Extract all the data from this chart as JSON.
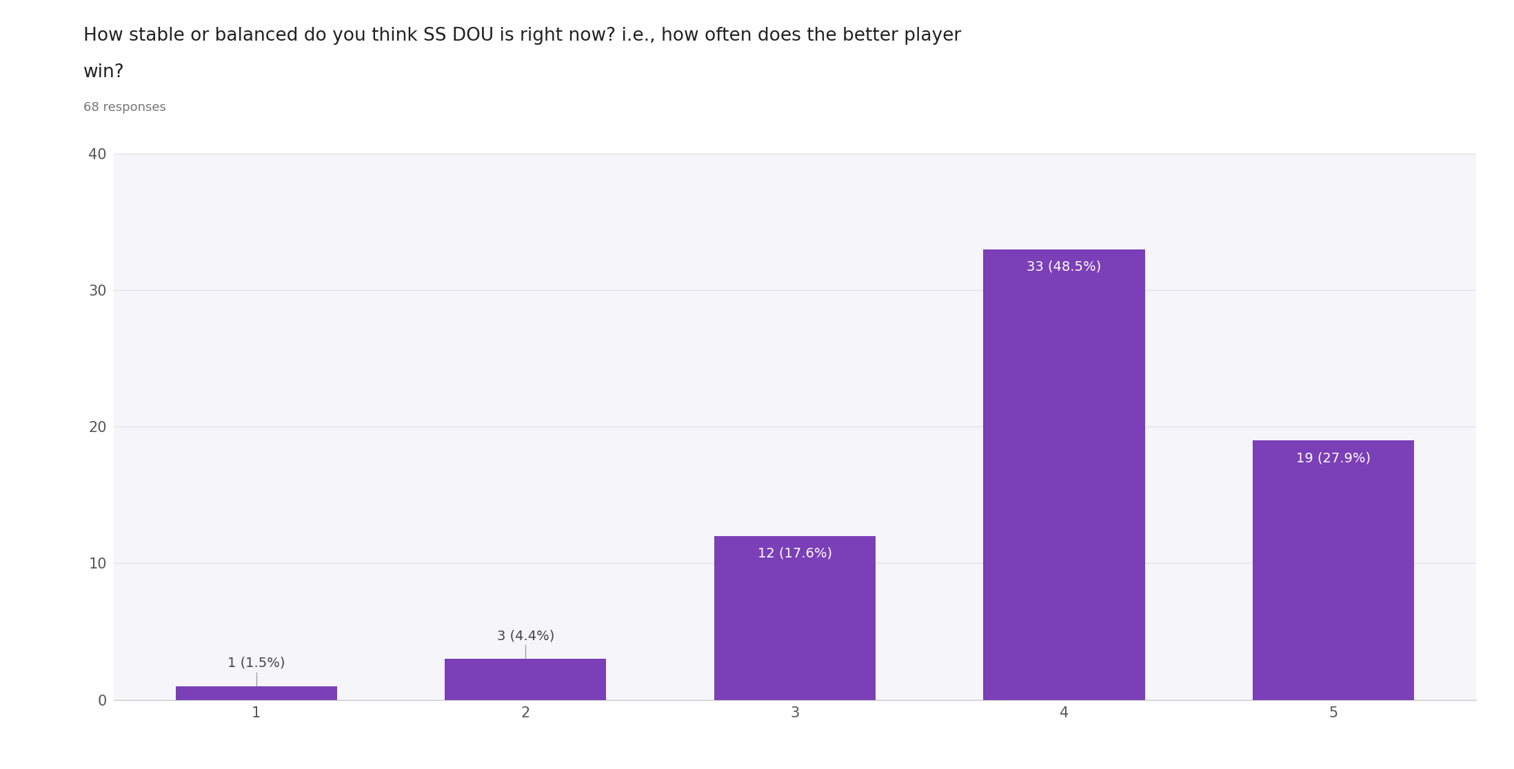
{
  "title_line1": "How stable or balanced do you think SS DOU is right now? i.e., how often does the better player",
  "title_line2": "win?",
  "subtitle": "68 responses",
  "categories": [
    1,
    2,
    3,
    4,
    5
  ],
  "values": [
    1,
    3,
    12,
    33,
    19
  ],
  "labels": [
    "1 (1.5%)",
    "3 (4.4%)",
    "12 (17.6%)",
    "33 (48.5%)",
    "19 (27.9%)"
  ],
  "bar_color": "#7b3fb8",
  "background_color": "#ffffff",
  "plot_bg_color": "#f5f5fa",
  "grid_color": "#e0e0e8",
  "ylim": [
    0,
    40
  ],
  "yticks": [
    0,
    10,
    20,
    30,
    40
  ],
  "title_fontsize": 19,
  "subtitle_fontsize": 13,
  "tick_fontsize": 15,
  "label_fontsize": 14,
  "label_color_inside": "#ffffff",
  "label_color_outside": "#444444"
}
